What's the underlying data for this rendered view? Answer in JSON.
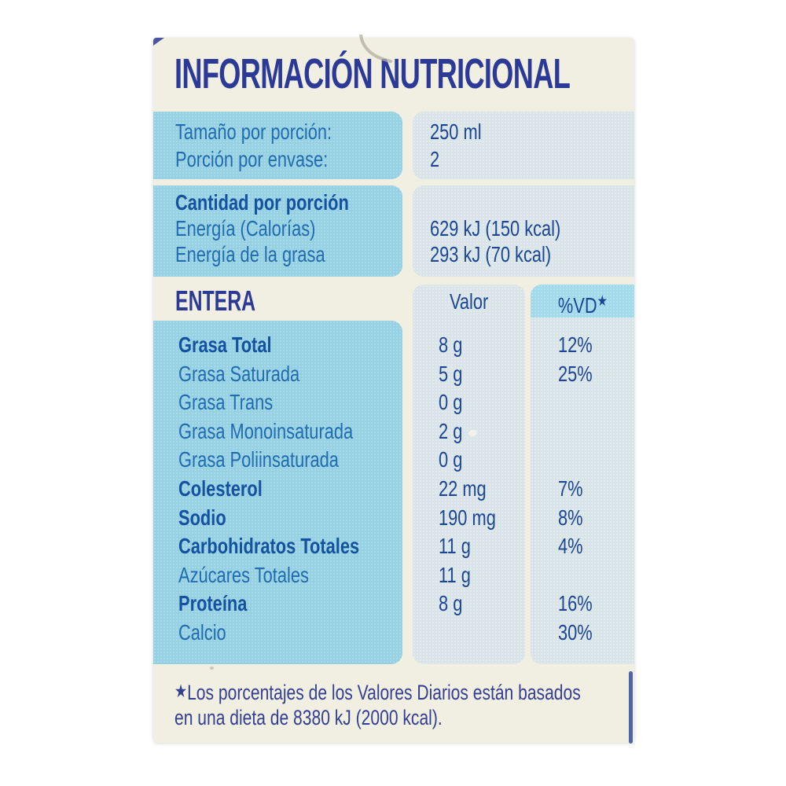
{
  "window": {
    "background": "#ffffff"
  },
  "label": {
    "title": "INFORMACIÓN NUTRICIONAL",
    "serving_section": {
      "rows": [
        {
          "label": "Tamaño por porción:",
          "value": "250 ml"
        },
        {
          "label": "Porción por envase:",
          "value": "2"
        }
      ]
    },
    "amount_section": {
      "heading": "Cantidad por porción",
      "rows": [
        {
          "label": "Energía (Calorías)",
          "value": "629 kJ (150 kcal)"
        },
        {
          "label": "Energía de la grasa",
          "value": "293 kJ (70 kcal)"
        }
      ]
    },
    "nutrients_table": {
      "variant_name": "ENTERA",
      "value_column_header": "Valor",
      "dv_column_header": "%VD",
      "dv_header_star": "★",
      "rows": [
        {
          "name": "Grasa Total",
          "bold": true,
          "value": "8 g",
          "dv": "12%"
        },
        {
          "name": "Grasa Saturada",
          "bold": false,
          "value": "5 g",
          "dv": "25%"
        },
        {
          "name": "Grasa Trans",
          "bold": false,
          "value": "0 g",
          "dv": ""
        },
        {
          "name": "Grasa Monoinsaturada",
          "bold": false,
          "value": "2 g",
          "dv": ""
        },
        {
          "name": "Grasa Poliinsaturada",
          "bold": false,
          "value": "0 g",
          "dv": ""
        },
        {
          "name": "Colesterol",
          "bold": true,
          "value": "22 mg",
          "dv": "7%"
        },
        {
          "name": "Sodio",
          "bold": true,
          "value": "190 mg",
          "dv": "8%"
        },
        {
          "name": "Carbohidratos Totales",
          "bold": true,
          "value": "11 g",
          "dv": "4%"
        },
        {
          "name": "Azúcares Totales",
          "bold": false,
          "value": "11 g",
          "dv": ""
        },
        {
          "name": "Proteína",
          "bold": true,
          "value": "8 g",
          "dv": "16%"
        },
        {
          "name": "Calcio",
          "bold": false,
          "value": "",
          "dv": "30%"
        }
      ]
    },
    "footnote": {
      "marker": "★",
      "line1": "Los porcentajes de los Valores Diarios están basados",
      "line2": "en una dieta de 8380 kJ (2000 kcal)."
    },
    "colors": {
      "title_navy": "#2b3a96",
      "label_blue": "#1f6cb0",
      "bold_label_blue": "#14529f",
      "value_navy": "#1c4695",
      "box_blue": "#95d0e3",
      "box_pale": "#d8e4e7",
      "dv_header_band": "#a2daeb",
      "card_background": "#f1eee2"
    }
  }
}
